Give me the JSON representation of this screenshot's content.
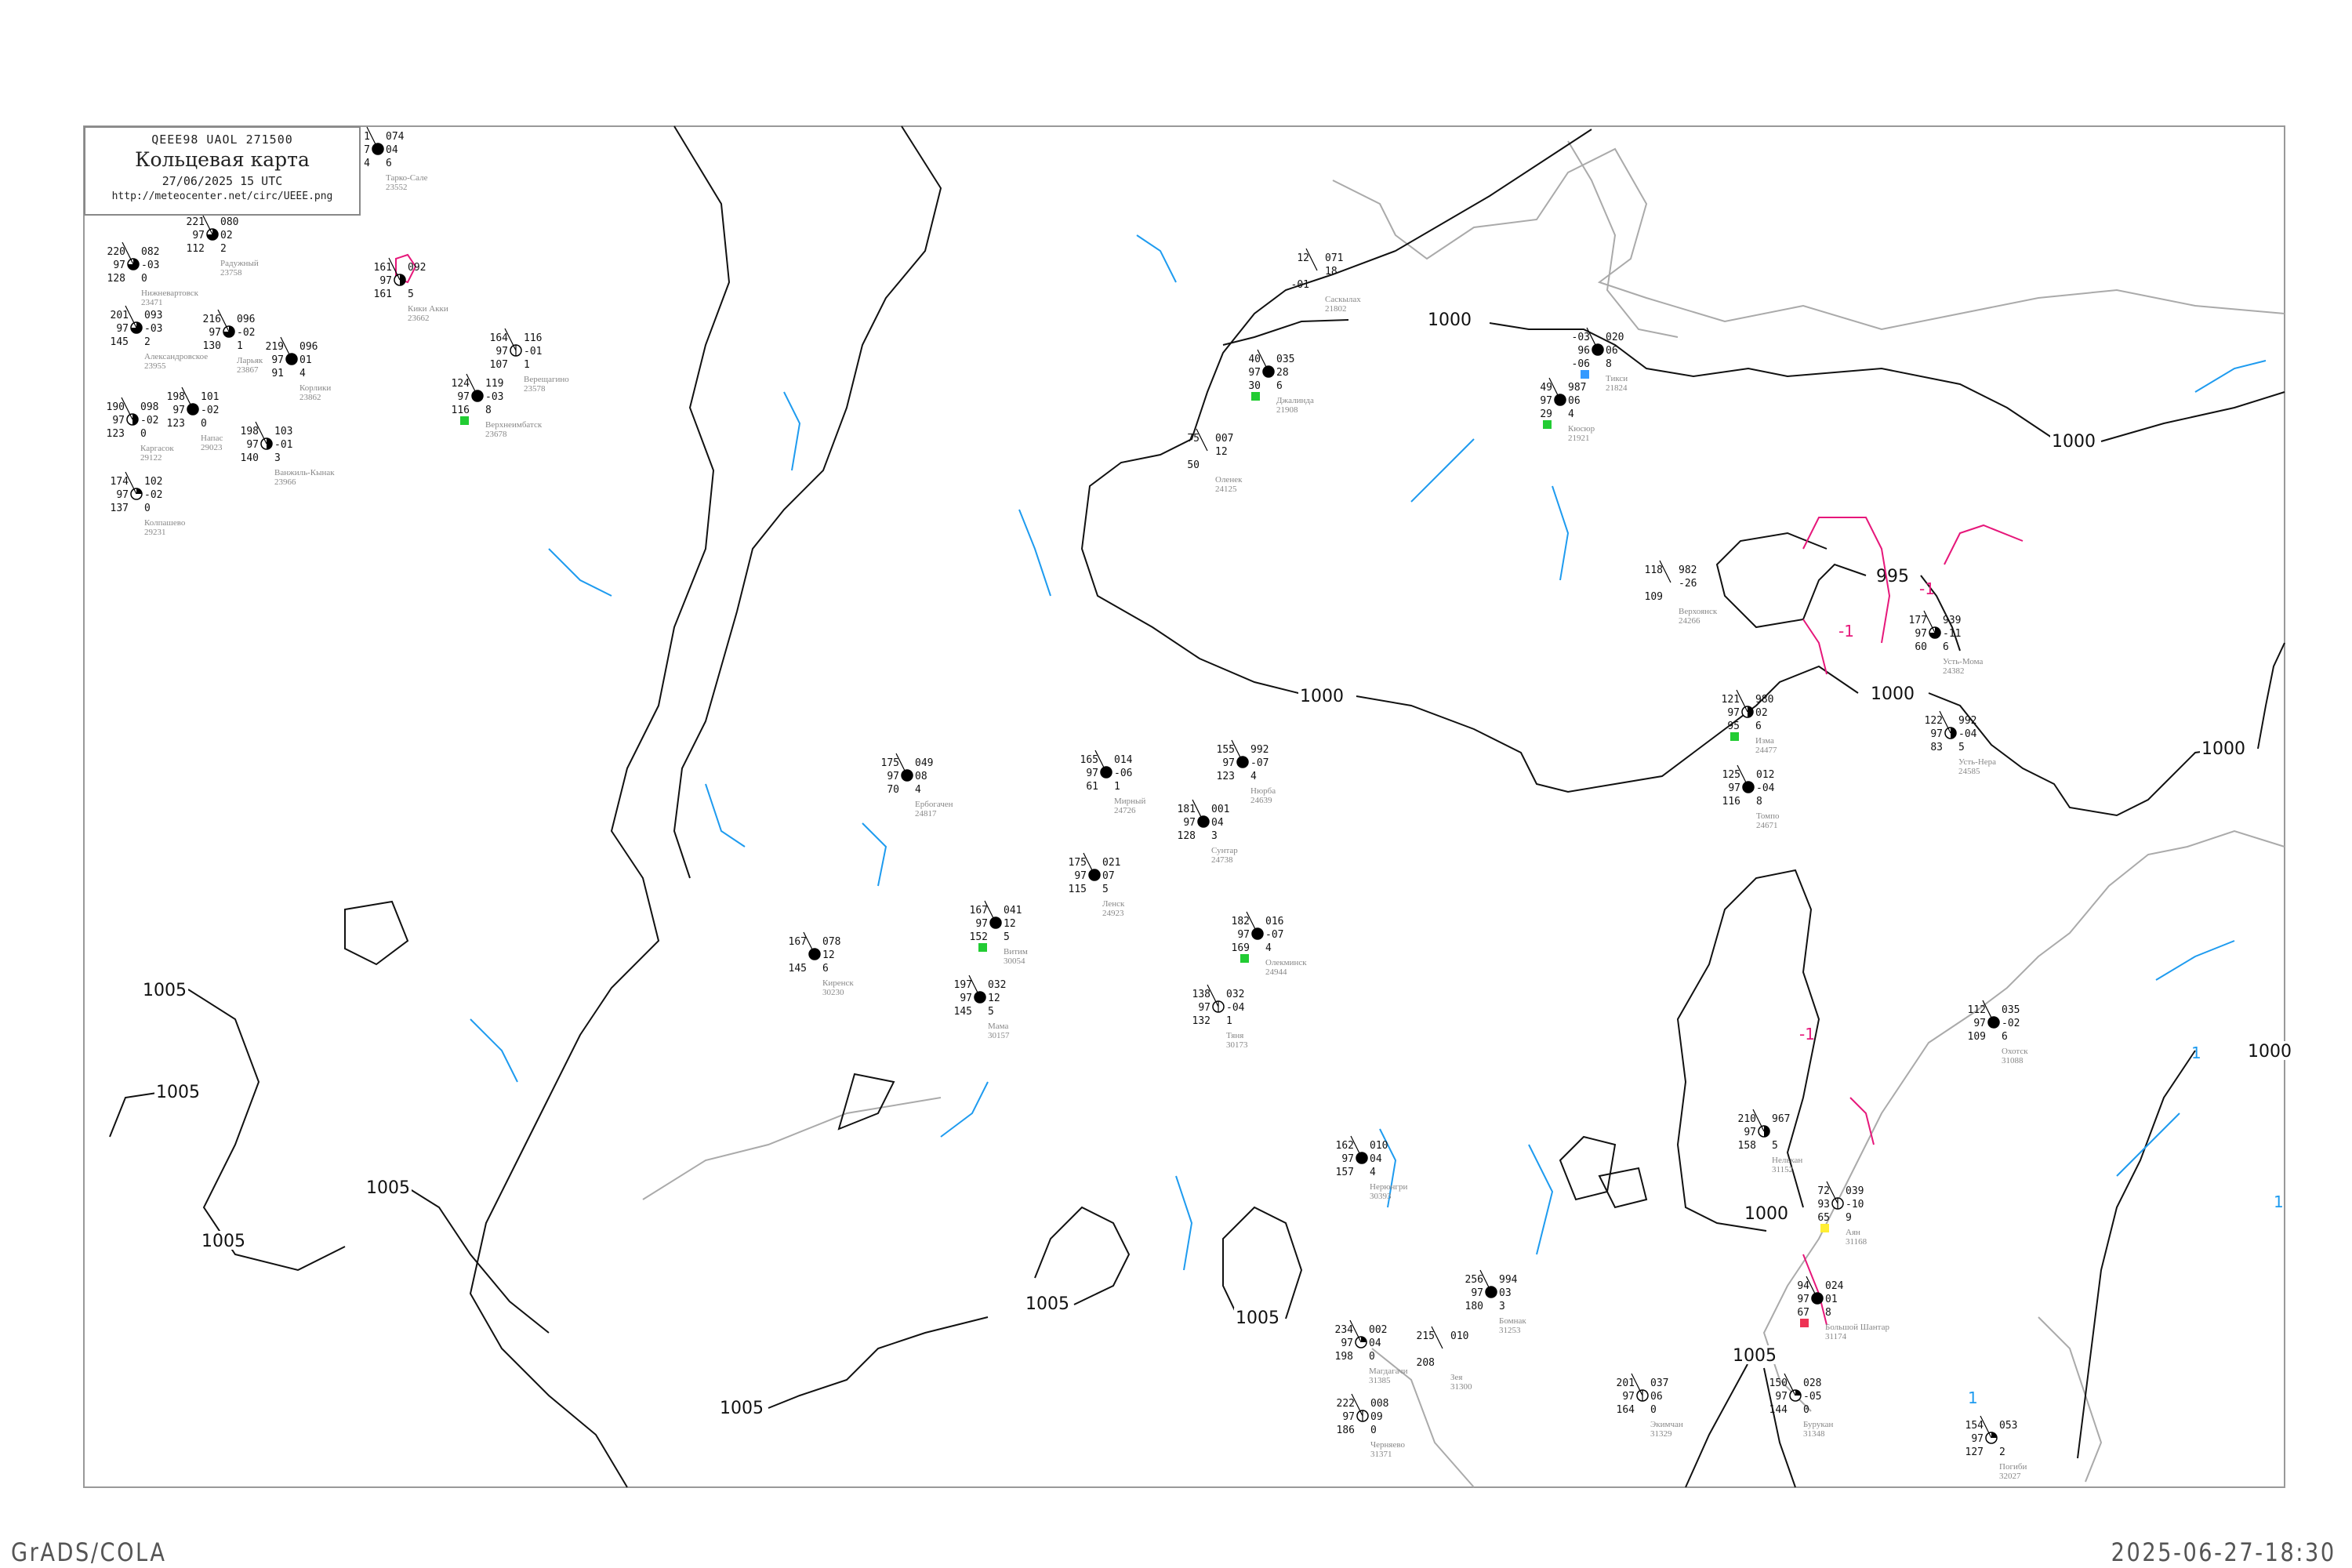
{
  "header": {
    "code": "QEEE98   UAOL   271500",
    "title": "Кольцевая карта",
    "datetime": "27/06/2025 15 UTC",
    "url": "http://meteocenter.net/circ/UEEE.png"
  },
  "footer": {
    "left": "GrADS/COLA",
    "right": "2025-06-27-18:30"
  },
  "colors": {
    "isobar": "#111111",
    "coast": "#aaaaaa",
    "isotherm_blue": "#1e9bef",
    "isotherm_magenta": "#e6177a",
    "frame": "#999999",
    "flag_green": "#22cc33",
    "flag_blue": "#3399ff",
    "flag_yellow": "#ffee33",
    "flag_red": "#ee3355"
  },
  "isobar_labels": [
    "1000",
    "1000",
    "995",
    "1000",
    "1000",
    "1000",
    "1005",
    "1005",
    "1005",
    "1005",
    "1005",
    "1005",
    "1005",
    "1000",
    "1005",
    "1000"
  ],
  "isotherm_labels": [
    "-1",
    "-1",
    "-1",
    "1",
    "1",
    "1"
  ],
  "stations": [
    {
      "name": "Тарко-Сале",
      "id": "23552",
      "tl": "1",
      "tr": "074",
      "ml": "7",
      "mr": "04",
      "bl": "4",
      "br": "6",
      "cloud": 1,
      "flag": ""
    },
    {
      "name": "Радужный",
      "id": "23758",
      "tl": "221",
      "tr": "080",
      "ml": "97",
      "mr": "02",
      "bl": "112",
      "br": "2",
      "cloud": 0.75,
      "flag": ""
    },
    {
      "name": "Нижневартовск",
      "id": "23471",
      "tl": "220",
      "tr": "082",
      "ml": "97",
      "mr": "-03",
      "bl": "128",
      "br": "0",
      "cloud": 0.75,
      "flag": ""
    },
    {
      "name": "Александровское",
      "id": "23955",
      "tl": "201",
      "tr": "093",
      "ml": "97",
      "mr": "-03",
      "bl": "145",
      "br": "2",
      "cloud": 0.75,
      "flag": ""
    },
    {
      "name": "Ларьяк",
      "id": "23867",
      "tl": "216",
      "tr": "096",
      "ml": "97",
      "mr": "-02",
      "bl": "130",
      "br": "1",
      "cloud": 0.75,
      "flag": ""
    },
    {
      "name": "Корлики",
      "id": "23862",
      "tl": "219",
      "tr": "096",
      "ml": "97",
      "mr": "01",
      "bl": "91",
      "br": "4",
      "cloud": 1,
      "flag": ""
    },
    {
      "name": "Каргасок",
      "id": "29122",
      "tl": "190",
      "tr": "098",
      "ml": "97",
      "mr": "-02",
      "bl": "123",
      "br": "0",
      "cloud": 0.5,
      "flag": ""
    },
    {
      "name": "Напас",
      "id": "29023",
      "tl": "198",
      "tr": "101",
      "ml": "97",
      "mr": "-02",
      "bl": "123",
      "br": "0",
      "cloud": 1,
      "flag": ""
    },
    {
      "name": "Ванжиль-Кынак",
      "id": "23966",
      "tl": "198",
      "tr": "103",
      "ml": "97",
      "mr": "-01",
      "bl": "140",
      "br": "3",
      "cloud": 0.5,
      "flag": ""
    },
    {
      "name": "Колпашево",
      "id": "29231",
      "tl": "174",
      "tr": "102",
      "ml": "97",
      "mr": "-02",
      "bl": "137",
      "br": "0",
      "cloud": 0.25,
      "flag": ""
    },
    {
      "name": "Кики Акки",
      "id": "23662",
      "tl": "161",
      "tr": "092",
      "ml": "97",
      "mr": "",
      "bl": "161",
      "br": "5",
      "cloud": 0.5,
      "flag": ""
    },
    {
      "name": "Верещагино",
      "id": "23578",
      "tl": "164",
      "tr": "116",
      "ml": "97",
      "mr": "-01",
      "bl": "107",
      "br": "1",
      "cloud": 0,
      "flag": ""
    },
    {
      "name": "Верхнеимбатск",
      "id": "23678",
      "tl": "124",
      "tr": "119",
      "ml": "97",
      "mr": "-03",
      "bl": "116",
      "br": "8",
      "cloud": 1,
      "flag": "green"
    },
    {
      "name": "Джалинда",
      "id": "21908",
      "tl": "40",
      "tr": "035",
      "ml": "97",
      "mr": "28",
      "bl": "30",
      "br": "6",
      "cloud": 1,
      "flag": "green"
    },
    {
      "name": "Тикси",
      "id": "21824",
      "tl": "-03",
      "tr": "020",
      "ml": "96",
      "mr": "06",
      "bl": "-06",
      "br": "8",
      "cloud": 1,
      "flag": "blue"
    },
    {
      "name": "Кюсюр",
      "id": "21921",
      "tl": "49",
      "tr": "987",
      "ml": "97",
      "mr": "06",
      "bl": "29",
      "br": "4",
      "cloud": 1,
      "flag": "green"
    },
    {
      "name": "Верхоянск",
      "id": "24266",
      "tl": "118",
      "tr": "982",
      "ml": "",
      "mr": "-26",
      "bl": "109",
      "br": "",
      "cloud": -1,
      "flag": ""
    },
    {
      "name": "Усть-Мома",
      "id": "24382",
      "tl": "177",
      "tr": "939",
      "ml": "97",
      "mr": "-11",
      "bl": "60",
      "br": "6",
      "cloud": 0.75,
      "flag": ""
    },
    {
      "name": "Изма",
      "id": "24477",
      "tl": "121",
      "tr": "980",
      "ml": "97",
      "mr": "02",
      "bl": "95",
      "br": "6",
      "cloud": 0.5,
      "flag": "green"
    },
    {
      "name": "Усть-Нера",
      "id": "24585",
      "tl": "122",
      "tr": "992",
      "ml": "97",
      "mr": "-04",
      "bl": "83",
      "br": "5",
      "cloud": 0.5,
      "flag": ""
    },
    {
      "name": "Томпо",
      "id": "24671",
      "tl": "125",
      "tr": "012",
      "ml": "97",
      "mr": "-04",
      "bl": "116",
      "br": "8",
      "cloud": 1,
      "flag": ""
    },
    {
      "name": "Ербогачен",
      "id": "24817",
      "tl": "175",
      "tr": "049",
      "ml": "97",
      "mr": "08",
      "bl": "70",
      "br": "4",
      "cloud": 1,
      "flag": ""
    },
    {
      "name": "Мирный",
      "id": "24726",
      "tl": "165",
      "tr": "014",
      "ml": "97",
      "mr": "-06",
      "bl": "61",
      "br": "1",
      "cloud": 1,
      "flag": ""
    },
    {
      "name": "Нюрба",
      "id": "24639",
      "tl": "155",
      "tr": "992",
      "ml": "97",
      "mr": "-07",
      "bl": "123",
      "br": "4",
      "cloud": 1,
      "flag": ""
    },
    {
      "name": "Сунтар",
      "id": "24738",
      "tl": "181",
      "tr": "001",
      "ml": "97",
      "mr": "04",
      "bl": "128",
      "br": "3",
      "cloud": 1,
      "flag": ""
    },
    {
      "name": "Ленск",
      "id": "24923",
      "tl": "175",
      "tr": "021",
      "ml": "97",
      "mr": "07",
      "bl": "115",
      "br": "5",
      "cloud": 1,
      "flag": ""
    },
    {
      "name": "Витим",
      "id": "30054",
      "tl": "167",
      "tr": "041",
      "ml": "97",
      "mr": "12",
      "bl": "152",
      "br": "5",
      "cloud": 1,
      "flag": "green"
    },
    {
      "name": "Олекминск",
      "id": "24944",
      "tl": "182",
      "tr": "016",
      "ml": "97",
      "mr": "-07",
      "bl": "169",
      "br": "4",
      "cloud": 1,
      "flag": "green"
    },
    {
      "name": "Киренск",
      "id": "30230",
      "tl": "167",
      "tr": "078",
      "ml": "",
      "mr": "12",
      "bl": "145",
      "br": "6",
      "cloud": 1,
      "flag": ""
    },
    {
      "name": "Мама",
      "id": "30157",
      "tl": "197",
      "tr": "032",
      "ml": "97",
      "mr": "12",
      "bl": "145",
      "br": "5",
      "cloud": 1,
      "flag": ""
    },
    {
      "name": "Тяня",
      "id": "30173",
      "tl": "138",
      "tr": "032",
      "ml": "97",
      "mr": "-04",
      "bl": "132",
      "br": "1",
      "cloud": 0,
      "flag": ""
    },
    {
      "name": "Нерюнгри",
      "id": "30393",
      "tl": "162",
      "tr": "010",
      "ml": "97",
      "mr": "04",
      "bl": "157",
      "br": "4",
      "cloud": 1,
      "flag": ""
    },
    {
      "name": "Нелькан",
      "id": "31152",
      "tl": "210",
      "tr": "967",
      "ml": "97",
      "mr": "",
      "bl": "158",
      "br": "5",
      "cloud": 0.5,
      "flag": ""
    },
    {
      "name": "Аян",
      "id": "31168",
      "tl": "72",
      "tr": "039",
      "ml": "93",
      "mr": "-10",
      "bl": "65",
      "br": "9",
      "cloud": 0,
      "flag": "yellow"
    },
    {
      "name": "Бомнак",
      "id": "31253",
      "tl": "256",
      "tr": "994",
      "ml": "97",
      "mr": "03",
      "bl": "180",
      "br": "3",
      "cloud": 1,
      "flag": ""
    },
    {
      "name": "Большой Шантар",
      "id": "31174",
      "tl": "94",
      "tr": "024",
      "ml": "97",
      "mr": "01",
      "bl": "67",
      "br": "8",
      "cloud": 1,
      "flag": "red"
    },
    {
      "name": "Магдагачи",
      "id": "31385",
      "tl": "234",
      "tr": "002",
      "ml": "97",
      "mr": "04",
      "bl": "198",
      "br": "0",
      "cloud": 0.25,
      "flag": ""
    },
    {
      "name": "Черняево",
      "id": "31371",
      "tl": "222",
      "tr": "008",
      "ml": "97",
      "mr": "09",
      "bl": "186",
      "br": "0",
      "cloud": 0,
      "flag": ""
    },
    {
      "name": "Зея",
      "id": "31300",
      "tl": "215",
      "tr": "010",
      "ml": "",
      "mr": "",
      "bl": "208",
      "br": "",
      "cloud": -1,
      "flag": ""
    },
    {
      "name": "Экимчан",
      "id": "31329",
      "tl": "201",
      "tr": "037",
      "ml": "97",
      "mr": "06",
      "bl": "164",
      "br": "0",
      "cloud": 0,
      "flag": ""
    },
    {
      "name": "Бурукан",
      "id": "31348",
      "tl": "150",
      "tr": "028",
      "ml": "97",
      "mr": "-05",
      "bl": "144",
      "br": "0",
      "cloud": 0.25,
      "flag": ""
    },
    {
      "name": "Охотск",
      "id": "31088",
      "tl": "112",
      "tr": "035",
      "ml": "97",
      "mr": "-02",
      "bl": "109",
      "br": "6",
      "cloud": 1,
      "flag": ""
    },
    {
      "name": "Погиби",
      "id": "32027",
      "tl": "154",
      "tr": "053",
      "ml": "97",
      "mr": "",
      "bl": "127",
      "br": "2",
      "cloud": 0.25,
      "flag": ""
    },
    {
      "name": "Саскылах",
      "id": "21802",
      "tl": "12",
      "tr": "071",
      "ml": "",
      "mr": "18",
      "bl": "-01",
      "br": "",
      "cloud": -1,
      "flag": ""
    },
    {
      "name": "Оленек",
      "id": "24125",
      "tl": "75",
      "tr": "007",
      "ml": "",
      "mr": "12",
      "bl": "50",
      "br": "",
      "cloud": -1,
      "flag": ""
    }
  ]
}
